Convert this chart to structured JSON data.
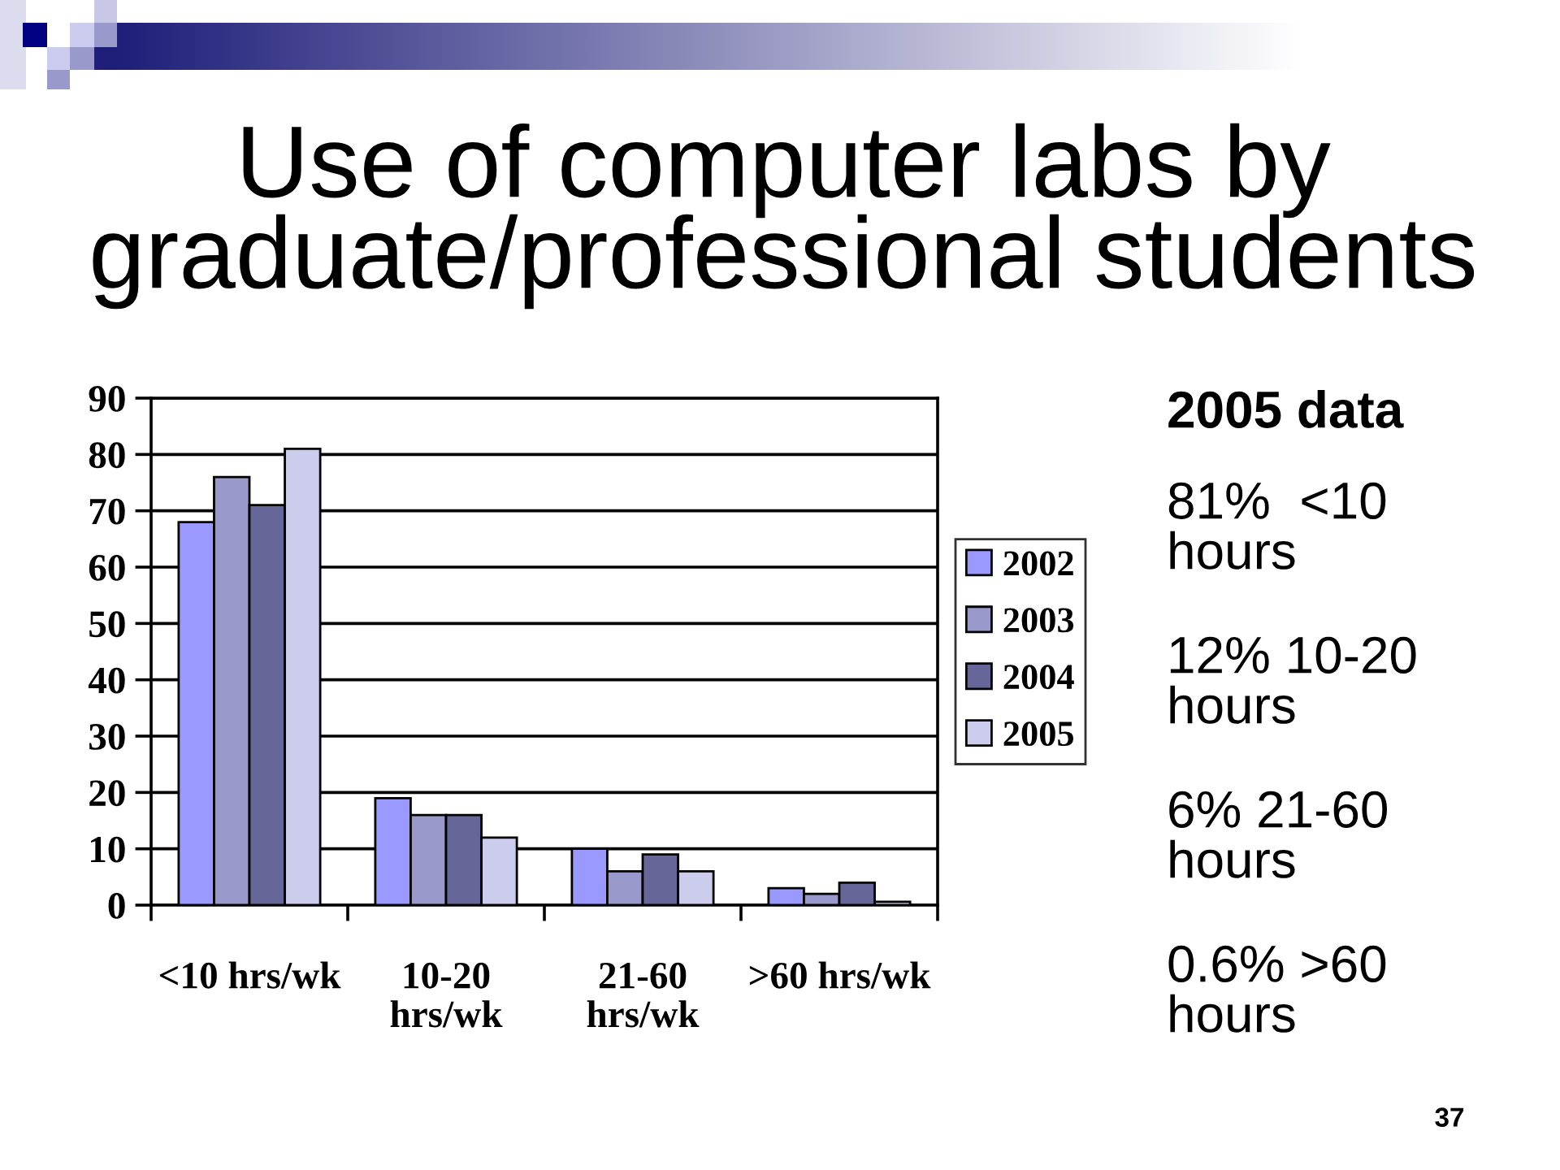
{
  "chart_data": {
    "type": "bar",
    "title": "Use of computer labs by\ngraduate/professional students",
    "categories": [
      "<10 hrs/wk",
      "10-20\nhrs/wk",
      "21-60\nhrs/wk",
      ">60 hrs/wk"
    ],
    "series": [
      {
        "name": "2002",
        "color": "#9999ff",
        "values": [
          68,
          19,
          10,
          3
        ]
      },
      {
        "name": "2003",
        "color": "#9999cc",
        "values": [
          76,
          16,
          6,
          2
        ]
      },
      {
        "name": "2004",
        "color": "#666699",
        "values": [
          71,
          16,
          9,
          4
        ]
      },
      {
        "name": "2005",
        "color": "#ccccec",
        "values": [
          81,
          12,
          6,
          0.6
        ]
      }
    ],
    "ylim": [
      0,
      90
    ],
    "yticks": [
      0,
      10,
      20,
      30,
      40,
      50,
      60,
      70,
      80,
      90
    ],
    "grid": "y",
    "legend": "right",
    "annotations": [
      "2005 data",
      "81%  <10\nhours",
      "12% 10-20\nhours",
      "6% 21-60\nhours",
      "0.6% >60\nhours",
      "37"
    ]
  }
}
